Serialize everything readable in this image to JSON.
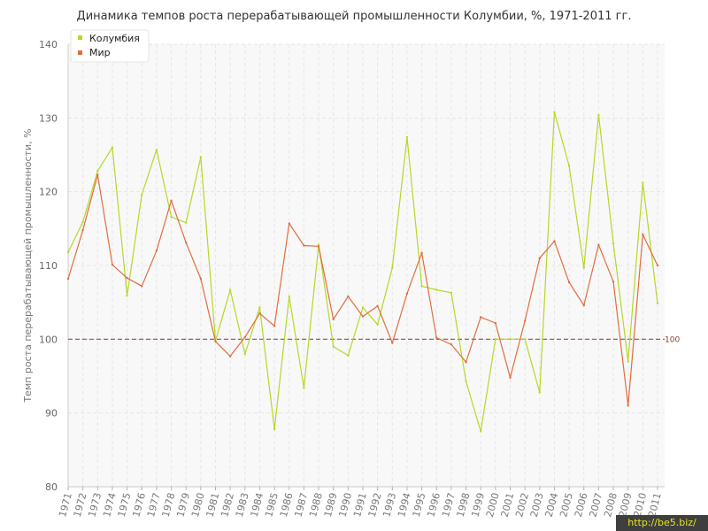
{
  "chart_data": {
    "type": "line",
    "title": "Динамика темпов роста перерабатывающей промышленности Колумбии, %, 1971-2011 гг.",
    "ylabel": "Темп роста перерабатывающей промышленности, %",
    "xlabel": "",
    "ylim": [
      80,
      140
    ],
    "yticks": [
      80,
      90,
      100,
      110,
      120,
      130,
      140
    ],
    "grid": true,
    "legend_position": "top-left",
    "categories": [
      "1971",
      "1972",
      "1973",
      "1974",
      "1975",
      "1976",
      "1977",
      "1978",
      "1979",
      "1980",
      "1981",
      "1982",
      "1983",
      "1984",
      "1985",
      "1986",
      "1987",
      "1988",
      "1989",
      "1990",
      "1991",
      "1992",
      "1993",
      "1994",
      "1995",
      "1996",
      "1997",
      "1998",
      "1999",
      "2000",
      "2001",
      "2002",
      "2003",
      "2004",
      "2005",
      "2006",
      "2007",
      "2008",
      "2009",
      "2010",
      "2011"
    ],
    "series": [
      {
        "name": "Колумбия",
        "color": "#b5d827",
        "values": [
          111.8,
          115.9,
          122.8,
          126.0,
          105.9,
          119.6,
          125.7,
          116.6,
          115.8,
          124.7,
          99.8,
          106.7,
          98.0,
          104.3,
          87.8,
          105.8,
          93.4,
          112.8,
          99.0,
          97.8,
          104.3,
          102.0,
          109.7,
          127.4,
          107.2,
          106.7,
          106.3,
          94.3,
          87.5,
          100.0,
          100.0,
          100.0,
          92.8,
          130.8,
          123.5,
          109.7,
          130.4,
          113.0,
          97.0,
          121.2,
          104.9
        ]
      },
      {
        "name": "Мир",
        "color": "#e06d3f",
        "values": [
          108.2,
          114.8,
          122.3,
          110.1,
          108.3,
          107.2,
          112.0,
          118.8,
          113.1,
          108.2,
          99.7,
          97.7,
          100.3,
          103.5,
          101.8,
          115.7,
          112.7,
          112.6,
          102.7,
          105.8,
          103.1,
          104.5,
          99.5,
          106.2,
          111.7,
          100.2,
          99.3,
          96.9,
          103.0,
          102.2,
          94.8,
          102.5,
          111.0,
          113.3,
          107.7,
          104.6,
          112.8,
          107.8,
          91.0,
          114.2,
          110.0
        ]
      }
    ],
    "reference_line": {
      "value": 100,
      "label": "100",
      "color": "#9b4a5a"
    }
  },
  "watermark": "http://be5.biz/"
}
